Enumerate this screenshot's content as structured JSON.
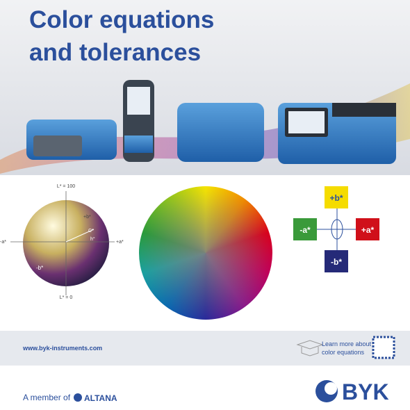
{
  "header": {
    "title_line1": "Color equations",
    "title_line2": "and tolerances"
  },
  "sphere": {
    "top": "L* = 100",
    "bottom": "L* = 0",
    "plus_b": "+b*",
    "minus_b": "-b*",
    "plus_a": "+a*",
    "minus_a": "-a*",
    "chroma": "C*",
    "hue": "h°"
  },
  "axes_diagram": {
    "plus_b": "+b*",
    "minus_a": "-a*",
    "plus_a": "+a*",
    "minus_b": "-b*"
  },
  "footer": {
    "url": "www.byk-instruments.com",
    "learn_line1": "Learn more about",
    "learn_line2": "color equations"
  },
  "bottom": {
    "member_of": "A member of",
    "altana": "ALTANA",
    "byk": "BYK"
  }
}
